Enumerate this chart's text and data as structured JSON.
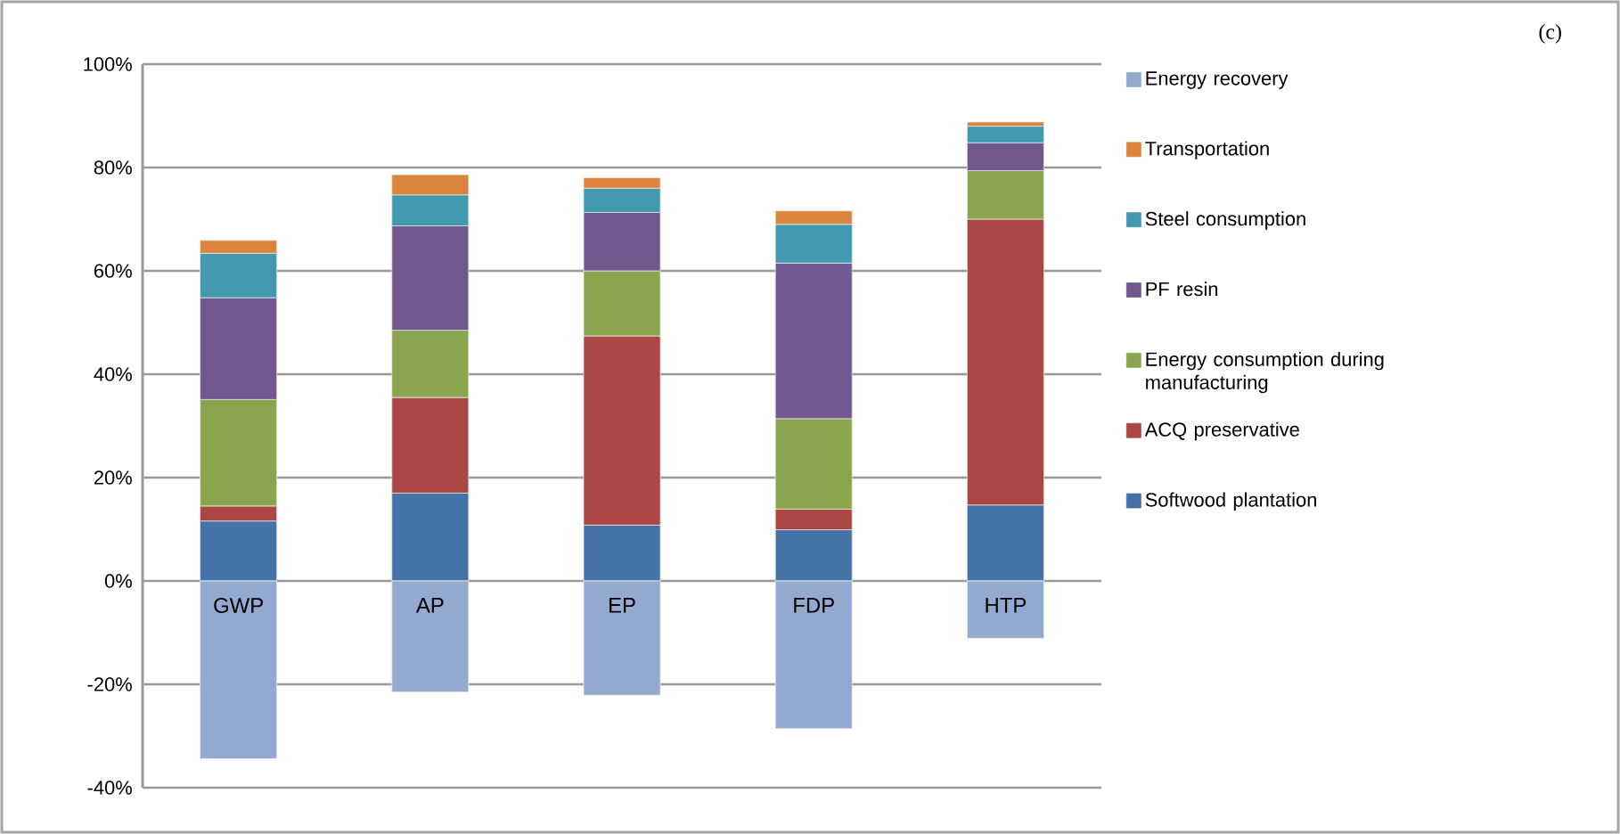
{
  "chart_data": {
    "type": "bar",
    "stacked": true,
    "categories": [
      "GWP",
      "AP",
      "EP",
      "FDP",
      "HTP"
    ],
    "series": [
      {
        "name": "Softwood plantation",
        "color": "#4572a7",
        "values": [
          11.6,
          17.0,
          10.8,
          9.9,
          14.7
        ]
      },
      {
        "name": "ACQ preservative",
        "color": "#aa4643",
        "values": [
          2.9,
          18.5,
          36.6,
          4.0,
          55.3
        ]
      },
      {
        "name": "Energy consumption during manufacturing",
        "color": "#89a54e",
        "values": [
          20.6,
          13.0,
          12.6,
          17.5,
          9.4
        ]
      },
      {
        "name": "PF resin",
        "color": "#71588f",
        "values": [
          19.7,
          20.2,
          11.3,
          30.1,
          5.4
        ]
      },
      {
        "name": "Steel consumption",
        "color": "#4198af",
        "values": [
          8.6,
          6.0,
          4.7,
          7.5,
          3.2
        ]
      },
      {
        "name": "Transportation",
        "color": "#db843d",
        "values": [
          2.5,
          3.9,
          2.0,
          2.6,
          0.8
        ]
      },
      {
        "name": "Energy recovery",
        "color": "#93a9cf",
        "values": [
          -34.4,
          -21.5,
          -22.1,
          -28.6,
          -11.1
        ]
      }
    ],
    "ylim": [
      -40,
      100
    ],
    "yticks": [
      {
        "value": -40,
        "label": "-40%"
      },
      {
        "value": -20,
        "label": "-20%"
      },
      {
        "value": 0,
        "label": "0%"
      },
      {
        "value": 20,
        "label": "20%"
      },
      {
        "value": 40,
        "label": "40%"
      },
      {
        "value": 60,
        "label": "60%"
      },
      {
        "value": 80,
        "label": "80%"
      },
      {
        "value": 100,
        "label": "100%"
      }
    ],
    "grid": "y",
    "legend": "right",
    "annotations": [
      "(c)"
    ]
  }
}
